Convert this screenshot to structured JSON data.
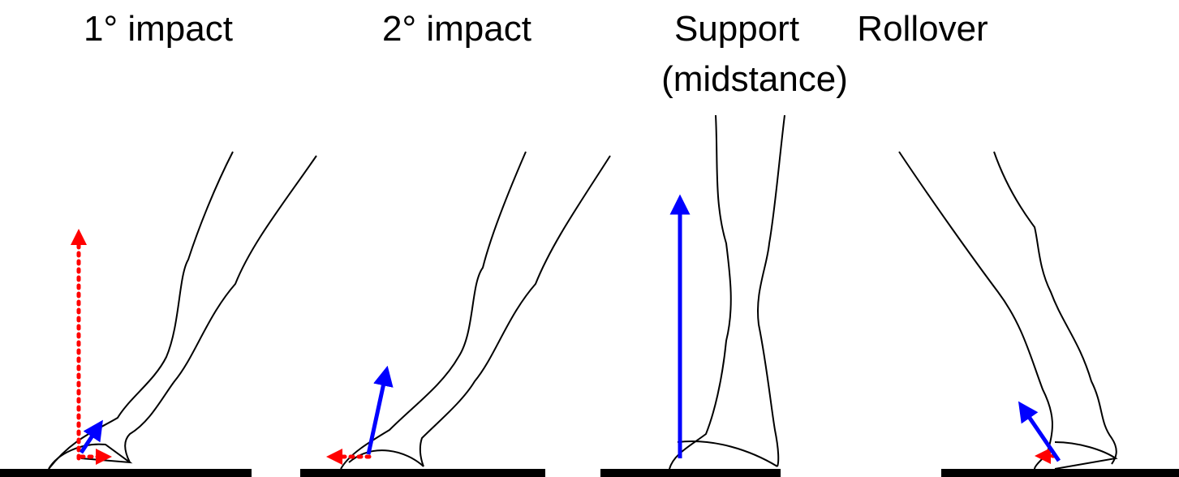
{
  "panels": [
    {
      "label": "1° impact"
    },
    {
      "label": "2° impact"
    },
    {
      "label_lines": [
        "Support",
        "(midstance)"
      ]
    },
    {
      "label": "Rollover"
    }
  ]
}
